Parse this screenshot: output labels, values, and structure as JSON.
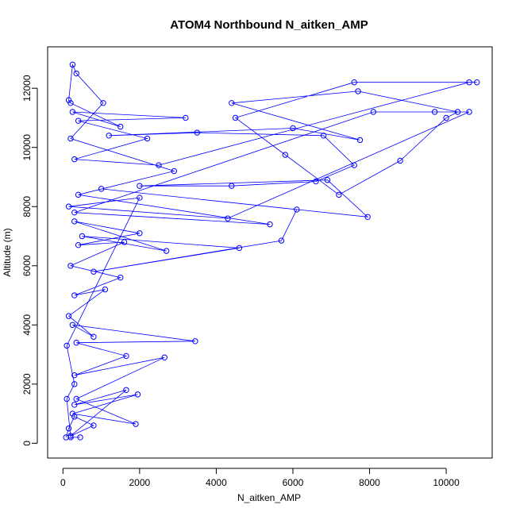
{
  "chart_data": {
    "type": "line",
    "title": "ATOM4 Northbound N_aitken_AMP",
    "xlabel": "N_aitken_AMP",
    "ylabel": "Altitude (m)",
    "xlim": [
      -400,
      11200
    ],
    "ylim": [
      -500,
      13400
    ],
    "x_ticks": [
      0,
      2000,
      4000,
      6000,
      8000,
      10000
    ],
    "y_ticks": [
      0,
      2000,
      4000,
      6000,
      8000,
      10000,
      12000
    ],
    "markers": "open-circle",
    "line_color": "#0000ff",
    "series": [
      {
        "values": [
          {
            "x": 80,
            "y": 200
          },
          {
            "x": 150,
            "y": 500
          },
          {
            "x": 300,
            "y": 900
          },
          {
            "x": 800,
            "y": 600
          },
          {
            "x": 200,
            "y": 250
          },
          {
            "x": 1650,
            "y": 1800
          },
          {
            "x": 300,
            "y": 1300
          },
          {
            "x": 1950,
            "y": 1650
          },
          {
            "x": 250,
            "y": 1000
          },
          {
            "x": 1900,
            "y": 650
          },
          {
            "x": 350,
            "y": 1500
          },
          {
            "x": 2650,
            "y": 2900
          },
          {
            "x": 300,
            "y": 2300
          },
          {
            "x": 1650,
            "y": 2950
          },
          {
            "x": 350,
            "y": 3400
          },
          {
            "x": 3450,
            "y": 3450
          },
          {
            "x": 250,
            "y": 4000
          },
          {
            "x": 800,
            "y": 3600
          },
          {
            "x": 150,
            "y": 4300
          },
          {
            "x": 1100,
            "y": 5200
          },
          {
            "x": 300,
            "y": 5000
          },
          {
            "x": 1500,
            "y": 5600
          },
          {
            "x": 200,
            "y": 6000
          },
          {
            "x": 1600,
            "y": 6800
          },
          {
            "x": 400,
            "y": 6700
          },
          {
            "x": 2000,
            "y": 7100
          },
          {
            "x": 300,
            "y": 7500
          },
          {
            "x": 2700,
            "y": 6500
          },
          {
            "x": 500,
            "y": 7000
          },
          {
            "x": 4600,
            "y": 6600
          },
          {
            "x": 800,
            "y": 5800
          },
          {
            "x": 5700,
            "y": 6850
          },
          {
            "x": 6100,
            "y": 7900
          },
          {
            "x": 1000,
            "y": 8600
          },
          {
            "x": 7950,
            "y": 7650
          },
          {
            "x": 6900,
            "y": 8900
          },
          {
            "x": 2000,
            "y": 8700
          },
          {
            "x": 4400,
            "y": 8700
          },
          {
            "x": 6600,
            "y": 8850
          },
          {
            "x": 7600,
            "y": 9400
          },
          {
            "x": 6800,
            "y": 10400
          },
          {
            "x": 3500,
            "y": 10500
          },
          {
            "x": 1200,
            "y": 10400
          },
          {
            "x": 6000,
            "y": 10650
          },
          {
            "x": 7750,
            "y": 10250
          },
          {
            "x": 4400,
            "y": 11500
          },
          {
            "x": 7700,
            "y": 11900
          },
          {
            "x": 10300,
            "y": 11200
          },
          {
            "x": 10000,
            "y": 11000
          },
          {
            "x": 8800,
            "y": 9550
          },
          {
            "x": 7200,
            "y": 8400
          },
          {
            "x": 5800,
            "y": 9750
          },
          {
            "x": 4500,
            "y": 11000
          },
          {
            "x": 7600,
            "y": 12200
          },
          {
            "x": 10800,
            "y": 12200
          },
          {
            "x": 10600,
            "y": 12200
          },
          {
            "x": 2500,
            "y": 9400
          },
          {
            "x": 300,
            "y": 9600
          },
          {
            "x": 2200,
            "y": 10300
          },
          {
            "x": 400,
            "y": 10900
          },
          {
            "x": 3200,
            "y": 11000
          },
          {
            "x": 250,
            "y": 11200
          },
          {
            "x": 1500,
            "y": 10700
          },
          {
            "x": 200,
            "y": 11500
          },
          {
            "x": 150,
            "y": 11600
          },
          {
            "x": 250,
            "y": 12800
          },
          {
            "x": 350,
            "y": 12500
          },
          {
            "x": 1050,
            "y": 11500
          },
          {
            "x": 200,
            "y": 10300
          },
          {
            "x": 2900,
            "y": 9200
          },
          {
            "x": 400,
            "y": 8400
          },
          {
            "x": 5400,
            "y": 7400
          },
          {
            "x": 300,
            "y": 7800
          },
          {
            "x": 8100,
            "y": 11200
          },
          {
            "x": 9700,
            "y": 11200
          },
          {
            "x": 10600,
            "y": 11200
          },
          {
            "x": 4300,
            "y": 7600
          },
          {
            "x": 150,
            "y": 8000
          },
          {
            "x": 2000,
            "y": 8300
          },
          {
            "x": 100,
            "y": 3300
          },
          {
            "x": 300,
            "y": 2000
          },
          {
            "x": 100,
            "y": 1500
          },
          {
            "x": 200,
            "y": 200
          },
          {
            "x": 450,
            "y": 200
          }
        ]
      }
    ]
  }
}
